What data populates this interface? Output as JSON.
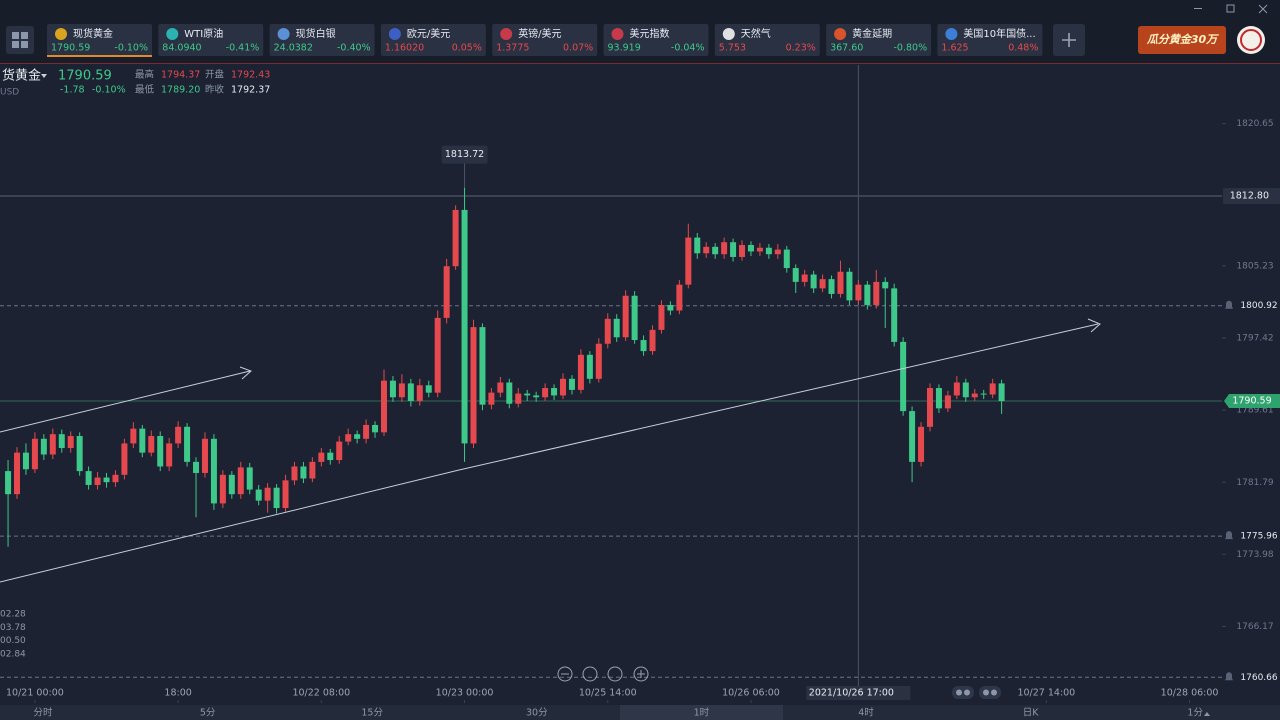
{
  "tickers": [
    {
      "name": "现货黄金",
      "price": "1790.59",
      "change": "-0.10%",
      "color": "#3ec98a",
      "icon": "#d9a520"
    },
    {
      "name": "WTI原油",
      "price": "84.0940",
      "change": "-0.41%",
      "color": "#3ec98a",
      "icon": "#2bb3b3"
    },
    {
      "name": "现货白银",
      "price": "24.0382",
      "change": "-0.40%",
      "color": "#3ec98a",
      "icon": "#5b8fd6"
    },
    {
      "name": "欧元/美元",
      "price": "1.16020",
      "change": "0.05%",
      "color": "#e5494d",
      "icon": "#3d5fc4"
    },
    {
      "name": "英镑/美元",
      "price": "1.3775",
      "change": "0.07%",
      "color": "#e5494d",
      "icon": "#c73a4a"
    },
    {
      "name": "美元指数",
      "price": "93.919",
      "change": "-0.04%",
      "color": "#3ec98a",
      "icon": "#c73a4a"
    },
    {
      "name": "天然气",
      "price": "5.753",
      "change": "0.23%",
      "color": "#e5494d",
      "icon": "#e0e0e0"
    },
    {
      "name": "黄金延期",
      "price": "367.60",
      "change": "-0.80%",
      "color": "#3ec98a",
      "icon": "#d9532c"
    },
    {
      "name": "美国10年国债...",
      "price": "1.625",
      "change": "0.48%",
      "color": "#e5494d",
      "icon": "#3d7fd6"
    }
  ],
  "ad": "瓜分黄金30万",
  "header": {
    "symbol": "货黄金",
    "price": "1790.59",
    "change": "-1.78",
    "change_pct": "-0.10%",
    "unit": "USD",
    "high_label": "最高",
    "high": "1794.37",
    "open_label": "开盘",
    "open": "1792.43",
    "low_label": "最低",
    "low": "1789.20",
    "prev_label": "昨收",
    "prev": "1792.37"
  },
  "left_labels": [
    "02.28",
    "03.78",
    "00.50",
    "02.84"
  ],
  "timeframes": [
    "分时",
    "5分",
    "15分",
    "30分",
    "1时",
    "4时",
    "日K",
    "1分"
  ],
  "chart_data": {
    "type": "candlestick",
    "up_color": "#e5494d",
    "down_color": "#3ec98a",
    "ylim": [
      1758.2,
      1827.0
    ],
    "xlim": [
      -0.9,
      135.4
    ],
    "yticks": [
      1766.17,
      1773.98,
      1781.79,
      1789.61,
      1797.42,
      1805.23,
      1820.65
    ],
    "xticks": [
      {
        "value": 3,
        "label": "10/21 00:00"
      },
      {
        "value": 19,
        "label": "18:00"
      },
      {
        "value": 35,
        "label": "10/22 08:00"
      },
      {
        "value": 51,
        "label": "10/23 00:00"
      },
      {
        "value": 67,
        "label": "10/25 14:00"
      },
      {
        "value": 83,
        "label": "10/26 06:00"
      },
      {
        "value": 116,
        "label": "10/27 14:00"
      },
      {
        "value": 132,
        "label": "10/28 06:00"
      }
    ],
    "crosshair": {
      "value": 95,
      "label": "2021/10/26 17:00"
    },
    "peak": 1813.72,
    "current": 1790.59,
    "levels": [
      {
        "value": 1812.8,
        "label": "1812.80",
        "style": "solid"
      },
      {
        "value": 1800.92,
        "style": "dashed"
      },
      {
        "value": 1775.96,
        "style": "dashed"
      },
      {
        "value": 1760.66,
        "style": "dashed"
      }
    ],
    "ohlc": [
      [
        1783.0,
        1784.2,
        1774.8,
        1780.5
      ],
      [
        1780.5,
        1785.6,
        1780.0,
        1785.0
      ],
      [
        1785.0,
        1786.0,
        1782.6,
        1783.2
      ],
      [
        1783.2,
        1787.2,
        1782.8,
        1786.5
      ],
      [
        1786.5,
        1787.0,
        1784.2,
        1784.8
      ],
      [
        1784.8,
        1787.6,
        1784.3,
        1787.0
      ],
      [
        1787.0,
        1787.5,
        1785.0,
        1785.5
      ],
      [
        1785.5,
        1787.3,
        1785.0,
        1786.8
      ],
      [
        1786.8,
        1787.2,
        1782.5,
        1783.0
      ],
      [
        1783.0,
        1783.5,
        1781.0,
        1781.5
      ],
      [
        1781.5,
        1782.9,
        1781.0,
        1782.3
      ],
      [
        1782.3,
        1782.8,
        1781.2,
        1781.8
      ],
      [
        1781.8,
        1783.1,
        1781.3,
        1782.6
      ],
      [
        1782.6,
        1786.5,
        1782.1,
        1786.0
      ],
      [
        1786.0,
        1788.3,
        1785.5,
        1787.6
      ],
      [
        1787.6,
        1788.0,
        1784.5,
        1785.0
      ],
      [
        1785.0,
        1787.4,
        1784.6,
        1786.8
      ],
      [
        1786.8,
        1787.3,
        1783.0,
        1783.5
      ],
      [
        1783.5,
        1786.6,
        1783.0,
        1786.0
      ],
      [
        1786.0,
        1788.4,
        1785.5,
        1787.8
      ],
      [
        1787.8,
        1788.2,
        1783.5,
        1784.0
      ],
      [
        1784.0,
        1784.5,
        1778.0,
        1782.8
      ],
      [
        1782.8,
        1787.2,
        1782.3,
        1786.5
      ],
      [
        1786.5,
        1787.0,
        1778.8,
        1779.5
      ],
      [
        1779.5,
        1783.1,
        1779.0,
        1782.6
      ],
      [
        1782.6,
        1783.0,
        1780.0,
        1780.5
      ],
      [
        1780.5,
        1784.0,
        1780.0,
        1783.4
      ],
      [
        1783.4,
        1783.9,
        1780.5,
        1781.0
      ],
      [
        1781.0,
        1781.5,
        1779.3,
        1779.8
      ],
      [
        1779.8,
        1781.7,
        1778.5,
        1781.2
      ],
      [
        1781.2,
        1781.6,
        1778.4,
        1779.0
      ],
      [
        1779.0,
        1782.6,
        1778.5,
        1782.0
      ],
      [
        1782.0,
        1784.0,
        1781.5,
        1783.5
      ],
      [
        1783.5,
        1784.0,
        1781.7,
        1782.2
      ],
      [
        1782.2,
        1784.5,
        1781.8,
        1784.0
      ],
      [
        1784.0,
        1785.5,
        1783.5,
        1785.0
      ],
      [
        1785.0,
        1785.4,
        1783.7,
        1784.2
      ],
      [
        1784.2,
        1786.8,
        1783.8,
        1786.2
      ],
      [
        1786.2,
        1787.6,
        1785.8,
        1787.0
      ],
      [
        1787.0,
        1787.4,
        1786.0,
        1786.5
      ],
      [
        1786.5,
        1788.6,
        1786.0,
        1788.0
      ],
      [
        1788.0,
        1788.4,
        1786.6,
        1787.2
      ],
      [
        1787.2,
        1794.0,
        1786.8,
        1792.8
      ],
      [
        1792.8,
        1793.3,
        1790.5,
        1791.0
      ],
      [
        1791.0,
        1793.5,
        1790.5,
        1792.5
      ],
      [
        1792.5,
        1793.0,
        1790.0,
        1790.6
      ],
      [
        1790.6,
        1793.0,
        1790.1,
        1792.3
      ],
      [
        1792.3,
        1792.8,
        1791.0,
        1791.5
      ],
      [
        1791.5,
        1800.4,
        1791.0,
        1799.6
      ],
      [
        1799.6,
        1806.0,
        1799.0,
        1805.2
      ],
      [
        1805.2,
        1811.8,
        1804.8,
        1811.3
      ],
      [
        1811.3,
        1813.72,
        1784.0,
        1786.0
      ],
      [
        1786.0,
        1799.4,
        1785.5,
        1798.6
      ],
      [
        1798.6,
        1799.0,
        1789.6,
        1790.2
      ],
      [
        1790.2,
        1792.0,
        1789.7,
        1791.5
      ],
      [
        1791.5,
        1793.2,
        1791.0,
        1792.6
      ],
      [
        1792.6,
        1793.0,
        1789.8,
        1790.3
      ],
      [
        1790.3,
        1792.0,
        1789.9,
        1791.4
      ],
      [
        1791.4,
        1791.8,
        1790.6,
        1791.2
      ],
      [
        1791.2,
        1791.6,
        1790.5,
        1791.0
      ],
      [
        1791.0,
        1792.5,
        1790.6,
        1792.0
      ],
      [
        1792.0,
        1792.4,
        1790.7,
        1791.2
      ],
      [
        1791.2,
        1793.6,
        1790.8,
        1793.0
      ],
      [
        1793.0,
        1793.4,
        1791.3,
        1791.8
      ],
      [
        1791.8,
        1796.2,
        1791.4,
        1795.6
      ],
      [
        1795.6,
        1796.0,
        1792.5,
        1793.0
      ],
      [
        1793.0,
        1797.4,
        1792.6,
        1796.8
      ],
      [
        1796.8,
        1800.1,
        1796.3,
        1799.5
      ],
      [
        1799.5,
        1800.0,
        1797.0,
        1797.5
      ],
      [
        1797.5,
        1802.6,
        1797.1,
        1802.0
      ],
      [
        1802.0,
        1802.5,
        1796.8,
        1797.2
      ],
      [
        1797.2,
        1797.7,
        1795.5,
        1796.0
      ],
      [
        1796.0,
        1798.8,
        1795.6,
        1798.3
      ],
      [
        1798.3,
        1801.5,
        1797.9,
        1801.0
      ],
      [
        1801.0,
        1801.4,
        1799.9,
        1800.4
      ],
      [
        1800.4,
        1803.7,
        1800.0,
        1803.2
      ],
      [
        1803.2,
        1809.8,
        1802.8,
        1808.3
      ],
      [
        1808.3,
        1808.8,
        1806.0,
        1806.6
      ],
      [
        1806.6,
        1807.8,
        1806.1,
        1807.3
      ],
      [
        1807.3,
        1807.7,
        1806.0,
        1806.5
      ],
      [
        1806.5,
        1808.3,
        1806.0,
        1807.8
      ],
      [
        1807.8,
        1808.2,
        1805.7,
        1806.2
      ],
      [
        1806.2,
        1808.0,
        1805.8,
        1807.5
      ],
      [
        1807.5,
        1807.9,
        1806.3,
        1806.8
      ],
      [
        1806.8,
        1807.7,
        1806.3,
        1807.2
      ],
      [
        1807.2,
        1807.6,
        1806.0,
        1806.5
      ],
      [
        1806.5,
        1807.6,
        1806.0,
        1807.0
      ],
      [
        1807.0,
        1807.4,
        1804.5,
        1805.0
      ],
      [
        1805.0,
        1805.4,
        1802.3,
        1803.5
      ],
      [
        1803.5,
        1804.8,
        1803.0,
        1804.3
      ],
      [
        1804.3,
        1804.7,
        1802.3,
        1802.8
      ],
      [
        1802.8,
        1804.3,
        1802.4,
        1803.8
      ],
      [
        1803.8,
        1804.2,
        1801.7,
        1802.2
      ],
      [
        1802.2,
        1805.8,
        1801.8,
        1804.6
      ],
      [
        1804.6,
        1805.0,
        1801.0,
        1801.5
      ],
      [
        1801.5,
        1803.7,
        1801.0,
        1803.2
      ],
      [
        1803.2,
        1803.6,
        1800.5,
        1801.0
      ],
      [
        1801.0,
        1804.8,
        1800.6,
        1803.5
      ],
      [
        1803.5,
        1804.0,
        1798.5,
        1802.8
      ],
      [
        1802.8,
        1803.3,
        1796.5,
        1797.0
      ],
      [
        1797.0,
        1797.5,
        1789.0,
        1789.5
      ],
      [
        1789.5,
        1790.0,
        1781.8,
        1784.0
      ],
      [
        1784.0,
        1788.3,
        1783.5,
        1787.8
      ],
      [
        1787.8,
        1792.5,
        1787.3,
        1792.0
      ],
      [
        1792.0,
        1792.4,
        1789.3,
        1789.8
      ],
      [
        1789.8,
        1791.7,
        1789.4,
        1791.2
      ],
      [
        1791.2,
        1793.3,
        1790.8,
        1792.6
      ],
      [
        1792.6,
        1793.0,
        1790.5,
        1791.0
      ],
      [
        1791.0,
        1791.9,
        1790.6,
        1791.4
      ],
      [
        1791.4,
        1791.8,
        1790.8,
        1791.3
      ],
      [
        1791.3,
        1793.0,
        1790.9,
        1792.5
      ],
      [
        1792.5,
        1792.9,
        1789.2,
        1790.59
      ]
    ]
  }
}
